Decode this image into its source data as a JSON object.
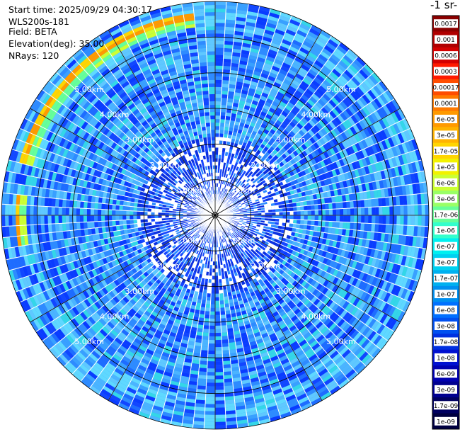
{
  "header": {
    "start_time": "Start time: 2025/09/29 04:30:17",
    "instrument": "WLS200s-181",
    "field": "Field: BETA",
    "elevation": "Elevation(deg): 35.00",
    "nrays": "NRays: 120"
  },
  "chart_data": {
    "type": "heatmap",
    "projection": "polar-ppi",
    "field": "BETA",
    "nrays": 120,
    "max_range_km": 6.0,
    "range_rings_km": [
      1.0,
      2.0,
      3.0,
      4.0,
      5.0
    ],
    "range_ring_labels": [
      "1.00km",
      "2.00km",
      "3.00km",
      "4.00km",
      "5.00km"
    ],
    "colorbar_title": "-1 sr-",
    "colorbar_ticks": [
      "0.0017",
      "0.001",
      "0.0006",
      "0.0003",
      "0.00017",
      "0.0001",
      "6e-05",
      "3e-05",
      "1.7e-05",
      "1e-05",
      "6e-06",
      "3e-06",
      "1.7e-06",
      "1e-06",
      "6e-07",
      "3e-07",
      "1.7e-07",
      "1e-07",
      "6e-08",
      "3e-08",
      "1.7e-08",
      "1e-08",
      "6e-09",
      "3e-09",
      "1.7e-09",
      "1e-09"
    ],
    "colorbar_colors": [
      "#8b0000",
      "#b00000",
      "#d40000",
      "#ff1a00",
      "#ff4d00",
      "#ff7a00",
      "#ff9a00",
      "#ffb300",
      "#ffd500",
      "#f2f200",
      "#ccff33",
      "#99ff66",
      "#66ff99",
      "#33ffcc",
      "#00f0f0",
      "#00d0f0",
      "#00b0f0",
      "#0090f0",
      "#0070ff",
      "#0050f0",
      "#0030e0",
      "#0010d0",
      "#0000b0",
      "#000090",
      "#000060",
      "#000040"
    ],
    "features": [
      {
        "description": "enhanced backscatter arc",
        "range_km": [
          5.3,
          5.7
        ],
        "azimuth_deg": [
          -75,
          -5
        ],
        "level": "1.7e-05 to 6e-05"
      },
      {
        "description": "enhanced backscatter spot",
        "range_km": [
          5.3,
          5.6
        ],
        "azimuth_deg": [
          260,
          275
        ],
        "level": "1e-05"
      }
    ]
  }
}
